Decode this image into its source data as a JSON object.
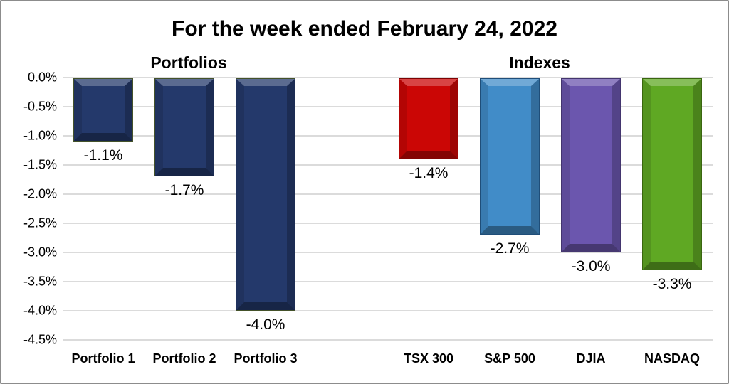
{
  "title": "For the week ended February 24, 2022",
  "sections": {
    "left_label": "Portfolios",
    "right_label": "Indexes"
  },
  "chart_data": {
    "type": "bar",
    "title": "For the week ended February 24, 2022",
    "group_labels": [
      "Portfolios",
      "Indexes"
    ],
    "groups": [
      [
        0,
        1,
        2
      ],
      [
        3,
        4,
        5,
        6
      ]
    ],
    "categories": [
      "Portfolio 1",
      "Portfolio 2",
      "Portfolio 3",
      "TSX 300",
      "S&P 500",
      "DJIA",
      "NASDAQ"
    ],
    "values": [
      -1.1,
      -1.7,
      -4.0,
      -1.4,
      -2.7,
      -3.0,
      -3.3
    ],
    "value_labels": [
      "-1.1%",
      "-1.7%",
      "-4.0%",
      "-1.4%",
      "-2.7%",
      "-3.0%",
      "-3.3%"
    ],
    "bar_colors": [
      "#24396B",
      "#24396B",
      "#24396B",
      "#CB0605",
      "#418CC8",
      "#6B56AE",
      "#5FA823"
    ],
    "bar_border_colors": [
      "#44522A",
      "#44522A",
      "#44522A",
      "#7E0101",
      "#1F4E79",
      "#43356E",
      "#3A660F"
    ],
    "y_ticks": [
      "0.0%",
      "-0.5%",
      "-1.0%",
      "-1.5%",
      "-2.0%",
      "-2.5%",
      "-3.0%",
      "-3.5%",
      "-4.0%",
      "-4.5%"
    ],
    "ylim": [
      -4.5,
      0.0
    ],
    "grid": true,
    "legend": "none",
    "bar_style": "3d-bevel"
  }
}
